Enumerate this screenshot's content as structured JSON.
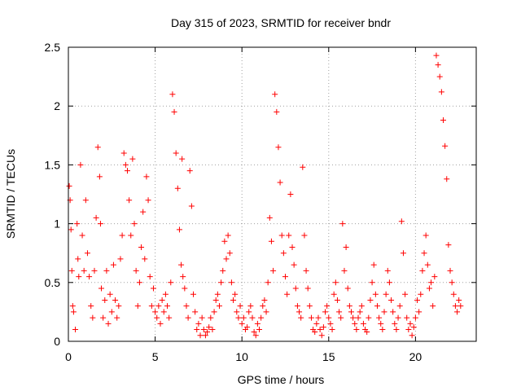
{
  "chart_data": {
    "type": "scatter",
    "title": "Day 315 of 2023, SRMTID for receiver bndr",
    "xlabel": "GPS time / hours",
    "ylabel": "SRMTID / TECUs",
    "xlim": [
      0,
      23.5
    ],
    "ylim": [
      0,
      2.5
    ],
    "xticks": [
      0,
      5,
      10,
      15,
      20
    ],
    "yticks": [
      0,
      0.5,
      1,
      1.5,
      2,
      2.5
    ],
    "grid": true,
    "marker": "+",
    "series": [
      {
        "name": "SRMTID",
        "color": "#ff0000",
        "x": [
          0.05,
          0.1,
          0.15,
          0.2,
          0.25,
          0.3,
          0.4,
          0.5,
          0.55,
          0.6,
          0.7,
          0.8,
          0.9,
          1.0,
          1.1,
          1.2,
          1.3,
          1.4,
          1.5,
          1.6,
          1.7,
          1.8,
          1.85,
          1.9,
          2.0,
          2.1,
          2.2,
          2.3,
          2.4,
          2.5,
          2.6,
          2.7,
          2.8,
          2.9,
          3.0,
          3.1,
          3.2,
          3.3,
          3.4,
          3.5,
          3.6,
          3.7,
          3.8,
          3.9,
          4.0,
          4.1,
          4.2,
          4.3,
          4.4,
          4.5,
          4.6,
          4.7,
          4.8,
          4.9,
          5.0,
          5.1,
          5.2,
          5.3,
          5.4,
          5.5,
          5.6,
          5.7,
          5.8,
          5.9,
          6.0,
          6.1,
          6.2,
          6.3,
          6.4,
          6.5,
          6.55,
          6.6,
          6.7,
          6.8,
          6.9,
          7.0,
          7.1,
          7.2,
          7.3,
          7.4,
          7.5,
          7.6,
          7.7,
          7.8,
          7.9,
          8.0,
          8.1,
          8.2,
          8.3,
          8.4,
          8.5,
          8.6,
          8.7,
          8.8,
          8.9,
          9.0,
          9.1,
          9.2,
          9.3,
          9.4,
          9.5,
          9.6,
          9.7,
          9.8,
          9.9,
          10.0,
          10.1,
          10.2,
          10.3,
          10.4,
          10.5,
          10.6,
          10.7,
          10.8,
          10.9,
          11.0,
          11.1,
          11.2,
          11.3,
          11.4,
          11.5,
          11.6,
          11.7,
          11.8,
          11.9,
          12.0,
          12.1,
          12.2,
          12.3,
          12.4,
          12.5,
          12.6,
          12.7,
          12.8,
          12.9,
          13.0,
          13.1,
          13.2,
          13.3,
          13.4,
          13.5,
          13.6,
          13.7,
          13.8,
          13.9,
          14.0,
          14.1,
          14.2,
          14.3,
          14.4,
          14.5,
          14.6,
          14.7,
          14.8,
          14.9,
          15.0,
          15.1,
          15.2,
          15.3,
          15.4,
          15.5,
          15.6,
          15.7,
          15.8,
          15.9,
          16.0,
          16.1,
          16.2,
          16.3,
          16.4,
          16.5,
          16.6,
          16.7,
          16.8,
          16.9,
          17.0,
          17.1,
          17.2,
          17.3,
          17.4,
          17.5,
          17.6,
          17.7,
          17.8,
          17.9,
          18.0,
          18.1,
          18.2,
          18.3,
          18.4,
          18.5,
          18.6,
          18.7,
          18.8,
          18.9,
          19.0,
          19.1,
          19.2,
          19.3,
          19.4,
          19.5,
          19.6,
          19.7,
          19.8,
          19.9,
          20.0,
          20.1,
          20.2,
          20.3,
          20.4,
          20.5,
          20.6,
          20.7,
          20.8,
          20.9,
          21.0,
          21.1,
          21.2,
          21.3,
          21.4,
          21.5,
          21.6,
          21.7,
          21.8,
          21.9,
          22.0,
          22.1,
          22.2,
          22.3,
          22.4,
          22.5,
          22.6
        ],
        "y": [
          1.32,
          1.2,
          0.95,
          0.6,
          0.3,
          0.25,
          0.1,
          1.0,
          0.7,
          0.55,
          1.5,
          0.9,
          0.6,
          1.2,
          0.75,
          0.55,
          0.3,
          0.2,
          0.6,
          1.05,
          1.65,
          1.4,
          1.0,
          0.45,
          0.2,
          0.35,
          0.6,
          0.15,
          0.4,
          0.25,
          0.65,
          0.35,
          0.2,
          0.3,
          0.7,
          0.9,
          1.6,
          1.5,
          1.45,
          1.2,
          0.9,
          1.55,
          1.0,
          0.6,
          0.3,
          0.5,
          0.8,
          1.1,
          0.7,
          1.4,
          1.2,
          0.55,
          0.3,
          0.45,
          0.25,
          0.2,
          0.3,
          0.15,
          0.35,
          0.25,
          0.4,
          0.3,
          0.2,
          0.5,
          2.1,
          1.95,
          1.6,
          1.3,
          0.95,
          0.65,
          1.55,
          0.55,
          0.45,
          0.3,
          0.2,
          1.45,
          1.15,
          0.4,
          0.25,
          0.1,
          0.15,
          0.05,
          0.2,
          0.1,
          0.05,
          0.08,
          0.12,
          0.2,
          0.1,
          0.25,
          0.35,
          0.4,
          0.3,
          0.5,
          0.6,
          0.85,
          0.7,
          0.9,
          0.75,
          0.5,
          0.35,
          0.4,
          0.25,
          0.2,
          0.3,
          0.15,
          0.2,
          0.1,
          0.12,
          0.25,
          0.3,
          0.2,
          0.08,
          0.05,
          0.15,
          0.1,
          0.2,
          0.3,
          0.35,
          0.25,
          0.5,
          1.05,
          0.85,
          0.6,
          2.1,
          1.95,
          1.65,
          1.35,
          0.9,
          0.75,
          0.55,
          0.4,
          0.9,
          1.25,
          0.8,
          0.65,
          0.45,
          0.3,
          0.25,
          0.2,
          1.48,
          0.9,
          0.6,
          0.45,
          0.3,
          0.2,
          0.1,
          0.08,
          0.15,
          0.2,
          0.1,
          0.05,
          0.12,
          0.25,
          0.3,
          0.2,
          0.15,
          0.1,
          0.4,
          0.5,
          0.35,
          0.25,
          0.2,
          1.0,
          0.6,
          0.8,
          0.45,
          0.3,
          0.25,
          0.2,
          0.15,
          0.1,
          0.2,
          0.25,
          0.3,
          0.15,
          0.1,
          0.08,
          0.2,
          0.35,
          0.5,
          0.65,
          0.4,
          0.3,
          0.2,
          0.15,
          0.1,
          0.25,
          0.4,
          0.6,
          0.5,
          0.35,
          0.25,
          0.15,
          0.1,
          0.2,
          0.3,
          1.02,
          0.75,
          0.4,
          0.2,
          0.1,
          0.15,
          0.05,
          0.12,
          0.2,
          0.35,
          0.25,
          0.4,
          0.6,
          0.75,
          0.9,
          0.65,
          0.45,
          0.5,
          0.3,
          0.55,
          2.43,
          2.35,
          2.25,
          2.12,
          1.88,
          1.66,
          1.38,
          0.82,
          0.6,
          0.5,
          0.4,
          0.3,
          0.25,
          0.35,
          0.3
        ]
      }
    ]
  }
}
